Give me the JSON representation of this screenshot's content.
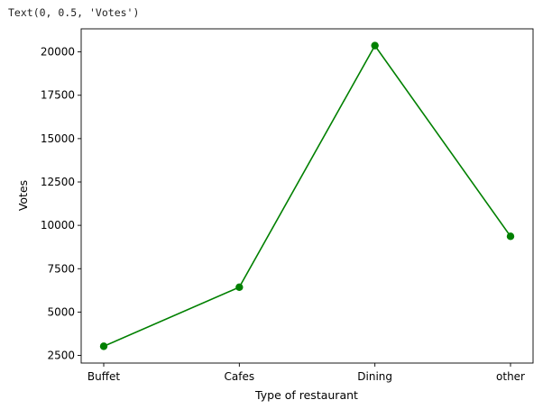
{
  "output_text": "Text(0, 0.5, 'Votes')",
  "chart_data": {
    "type": "line",
    "categories": [
      "Buffet",
      "Cafes",
      "Dining",
      "other"
    ],
    "values": [
      3028,
      6434,
      20363,
      9367
    ],
    "xlabel": "Type of restaurant",
    "ylabel": "Votes",
    "yticks": [
      2500,
      5000,
      7500,
      10000,
      12500,
      15000,
      17500,
      20000
    ],
    "ylim": [
      2060,
      21330
    ],
    "color": "#008000",
    "marker": "circle",
    "grid": false
  }
}
